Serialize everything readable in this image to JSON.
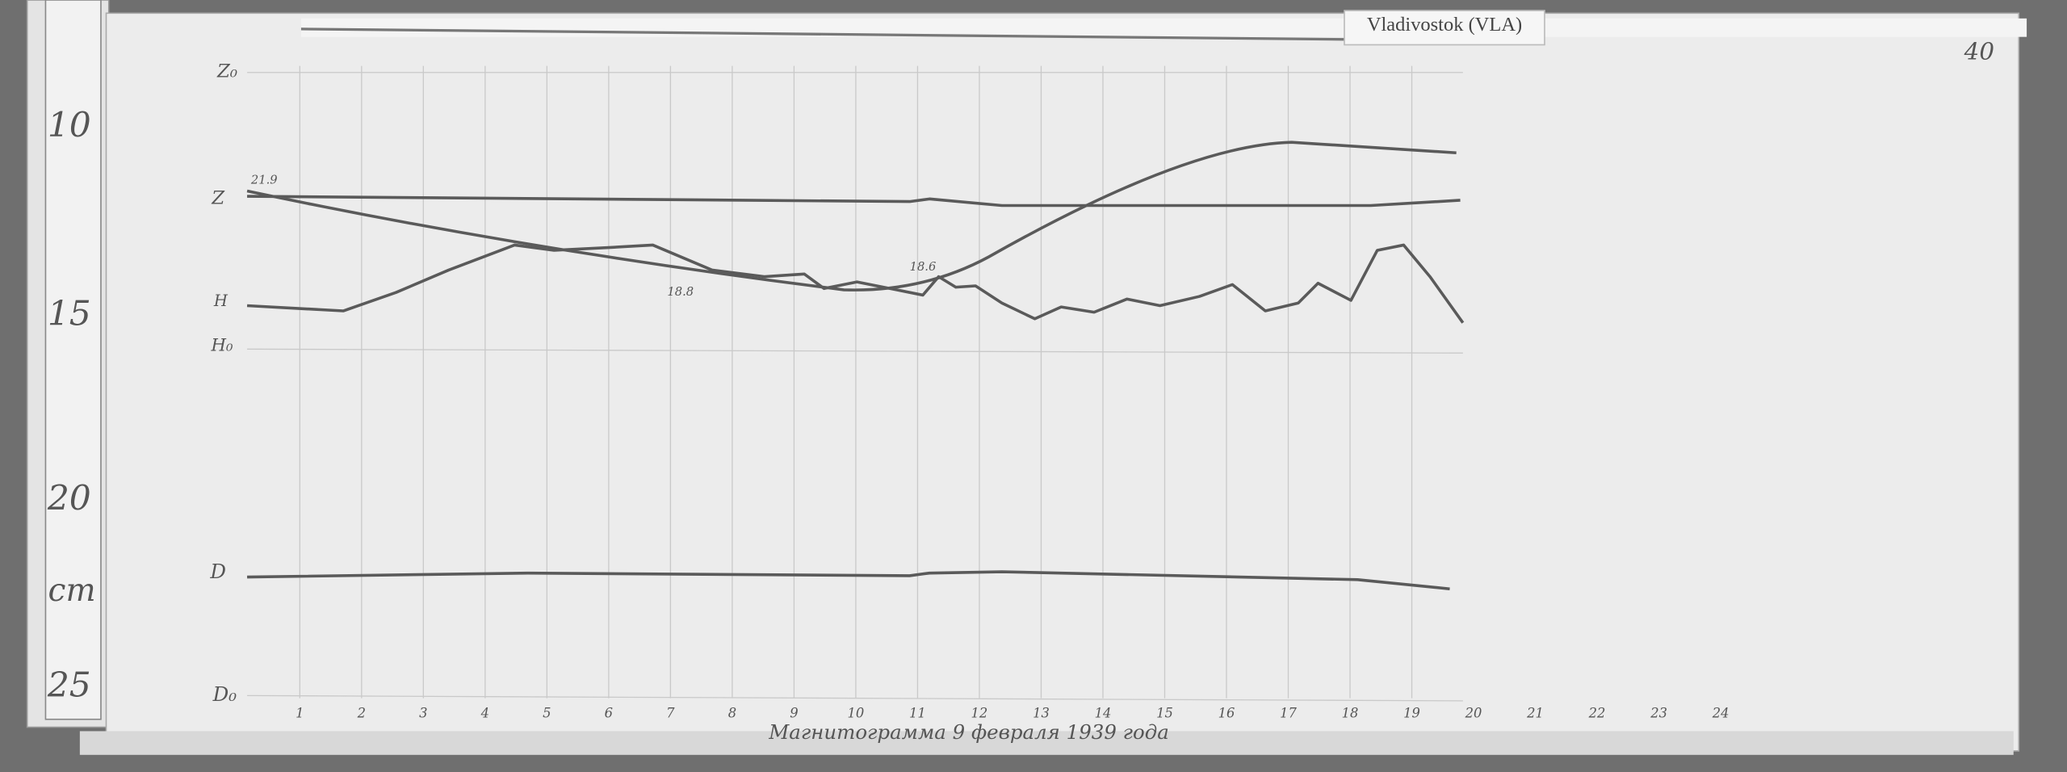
{
  "plate": {
    "station": "Vladivostok (VLA)",
    "number": "40",
    "ruler": {
      "marks": [
        "10",
        "15",
        "20",
        "25"
      ],
      "unit": "cm"
    },
    "traces": {
      "z0": "Z₀",
      "z": "Z",
      "h": "H",
      "h0": "H₀",
      "d": "D",
      "d0": "D₀"
    },
    "annotations": [
      "21.9",
      "18.8",
      "18.6"
    ],
    "hours": [
      "1",
      "2",
      "3",
      "4",
      "5",
      "6",
      "7",
      "8",
      "9",
      "10",
      "11",
      "12",
      "13",
      "14",
      "15",
      "16",
      "17",
      "18",
      "19",
      "20",
      "21",
      "22",
      "23",
      "24"
    ],
    "caption": "Магнитограмма 9 февраля 1939 года"
  }
}
